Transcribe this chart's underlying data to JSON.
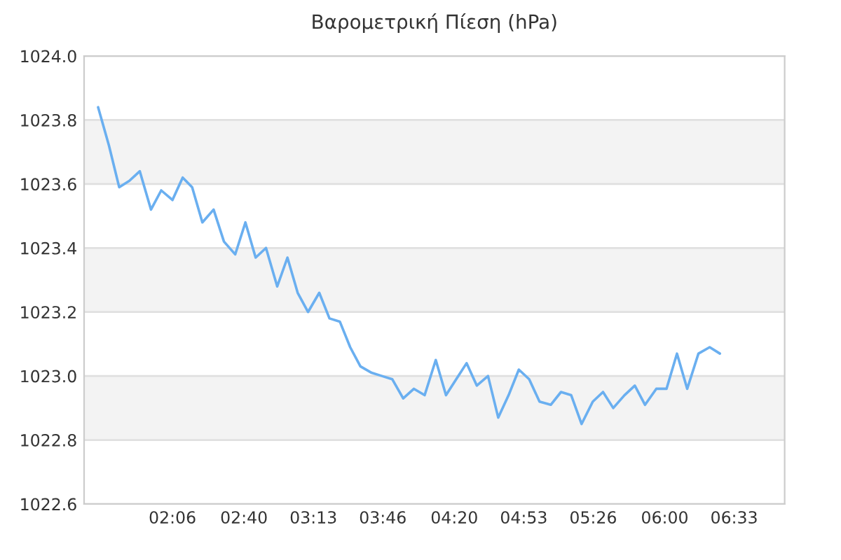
{
  "chart_data": {
    "type": "line",
    "title": "Βαρομετρική Πίεση (hPa)",
    "x": [
      1.511,
      1.597,
      1.678,
      1.759,
      1.841,
      1.93,
      2.011,
      2.1,
      2.181,
      2.256,
      2.337,
      2.426,
      2.508,
      2.597,
      2.678,
      2.759,
      2.841,
      2.93,
      3.011,
      3.092,
      3.174,
      3.263,
      3.344,
      3.426,
      3.508,
      3.589,
      3.678,
      3.759,
      3.841,
      3.928,
      4.013,
      4.098,
      4.186,
      4.267,
      4.348,
      4.43,
      4.511,
      4.6,
      4.681,
      4.763,
      4.844,
      4.926,
      5.008,
      5.097,
      5.178,
      5.259,
      5.341,
      5.43,
      5.511,
      5.592,
      5.681,
      5.763,
      5.844,
      5.933,
      6.014,
      6.097,
      6.178,
      6.267,
      6.356,
      6.437
    ],
    "series": [
      {
        "color": "#6aaff0",
        "values": [
          1023.84,
          1023.72,
          1023.59,
          1023.61,
          1023.64,
          1023.52,
          1023.58,
          1023.55,
          1023.62,
          1023.59,
          1023.48,
          1023.52,
          1023.42,
          1023.38,
          1023.48,
          1023.37,
          1023.4,
          1023.28,
          1023.37,
          1023.26,
          1023.2,
          1023.26,
          1023.18,
          1023.17,
          1023.09,
          1023.03,
          1023.01,
          1023.0,
          1022.99,
          1022.93,
          1022.96,
          1022.94,
          1023.05,
          1022.94,
          1022.99,
          1023.04,
          1022.97,
          1023.0,
          1022.87,
          1022.94,
          1023.02,
          1022.99,
          1022.92,
          1022.91,
          1022.95,
          1022.94,
          1022.85,
          1022.92,
          1022.95,
          1022.9,
          1022.94,
          1022.97,
          1022.91,
          1022.96,
          1022.96,
          1023.07,
          1022.96,
          1023.07,
          1023.09,
          1023.07
        ]
      }
    ],
    "xlim": [
      1.4,
      6.95
    ],
    "xticks": [
      {
        "value": 2.1,
        "label": "02:06"
      },
      {
        "value": 2.6667,
        "label": "02:40"
      },
      {
        "value": 3.2167,
        "label": "03:13"
      },
      {
        "value": 3.7667,
        "label": "03:46"
      },
      {
        "value": 4.3333,
        "label": "04:20"
      },
      {
        "value": 4.8833,
        "label": "04:53"
      },
      {
        "value": 5.4333,
        "label": "05:26"
      },
      {
        "value": 6.0,
        "label": "06:00"
      },
      {
        "value": 6.55,
        "label": "06:33"
      }
    ],
    "ylim": [
      1022.6,
      1024.0
    ],
    "yticks": [
      1022.6,
      1022.8,
      {
        "value": 1023,
        "label": "1023.0"
      },
      1023.2,
      1023.4,
      1023.6,
      1023.8,
      {
        "value": 1024,
        "label": "1024.0"
      }
    ],
    "grid": "y",
    "marker": "none",
    "line_style": "solid"
  }
}
